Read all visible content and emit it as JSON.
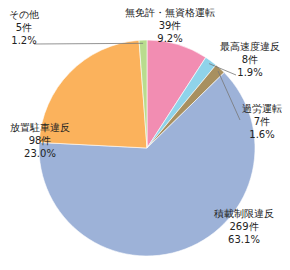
{
  "chart_data": {
    "type": "pie",
    "categories": [
      "無免許・無資格運転",
      "最高速度違反",
      "過労運転",
      "積載制限違反",
      "放置駐車違反",
      "その他"
    ],
    "values": [
      39,
      8,
      7,
      269,
      98,
      5
    ],
    "value_labels": [
      "39件",
      "8件",
      "7件",
      "269件",
      "98件",
      "5件"
    ],
    "shares": [
      9.2,
      1.9,
      1.6,
      63.1,
      23.0,
      1.2
    ],
    "share_labels": [
      "9.2%",
      "1.9%",
      "1.6%",
      "63.1%",
      "23.0%",
      "1.2%"
    ],
    "colors": [
      "#f28db2",
      "#8fd3ea",
      "#a89060",
      "#9db2d8",
      "#fbb25c",
      "#b9dc8e"
    ],
    "data_labels": true
  }
}
